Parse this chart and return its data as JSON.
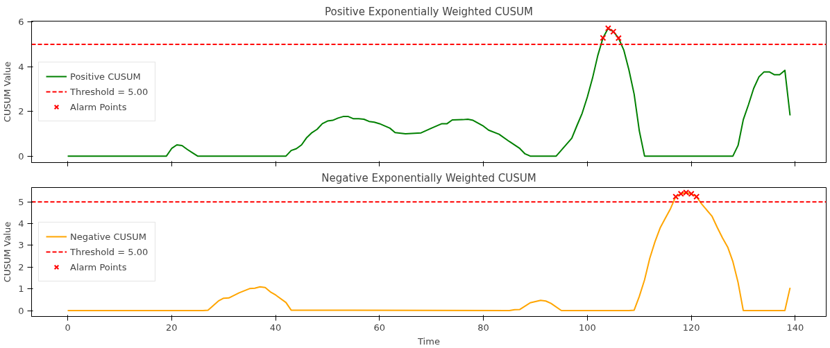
{
  "chart_data": [
    {
      "type": "line",
      "title": "Positive Exponentially Weighted CUSUM",
      "ylabel": "CUSUM Value",
      "xlim": [
        -6.95,
        145.95
      ],
      "ylim": [
        -0.29,
        6.04
      ],
      "xticks": [
        0,
        20,
        40,
        60,
        80,
        100,
        120,
        140
      ],
      "yticks": [
        0,
        2,
        4,
        6
      ],
      "tick_labels": "y",
      "grid": false,
      "legend": "left",
      "series": [
        {
          "name": "Positive CUSUM",
          "color": "#008000",
          "line_style": "solid",
          "marker": "none",
          "x": [
            0,
            19,
            20,
            21,
            22,
            23,
            24,
            25,
            42,
            43,
            44,
            45,
            46,
            47,
            48,
            49,
            50,
            51,
            52,
            53,
            54,
            55,
            56,
            57,
            58,
            59,
            60,
            62,
            63,
            65,
            68,
            70,
            72,
            73,
            74,
            76,
            77,
            78,
            80,
            81,
            83,
            85,
            87,
            88,
            89,
            94,
            97,
            98,
            99,
            100,
            101,
            102,
            103,
            104,
            105,
            106,
            107,
            108,
            109,
            110,
            111,
            128,
            129,
            130,
            131,
            132,
            133,
            134,
            135,
            136,
            137,
            138,
            139
          ],
          "values": [
            0,
            0,
            0.34,
            0.5,
            0.47,
            0.3,
            0.15,
            0,
            0,
            0.25,
            0.33,
            0.5,
            0.83,
            1.05,
            1.2,
            1.45,
            1.57,
            1.6,
            1.7,
            1.77,
            1.77,
            1.67,
            1.67,
            1.65,
            1.55,
            1.52,
            1.45,
            1.25,
            1.05,
            1.0,
            1.04,
            1.25,
            1.45,
            1.45,
            1.62,
            1.63,
            1.65,
            1.6,
            1.34,
            1.16,
            0.98,
            0.65,
            0.34,
            0.1,
            0,
            0,
            0.8,
            1.37,
            1.92,
            2.65,
            3.5,
            4.5,
            5.29,
            5.72,
            5.57,
            5.28,
            4.75,
            3.85,
            2.77,
            1.12,
            0,
            0,
            0.48,
            1.63,
            2.3,
            3.03,
            3.54,
            3.77,
            3.77,
            3.64,
            3.64,
            3.84,
            1.82
          ]
        },
        {
          "name": "Alarm Points",
          "type": "scatter",
          "color": "#ff0000",
          "marker": "cross",
          "x": [
            103,
            104,
            105,
            106
          ],
          "values": [
            5.29,
            5.72,
            5.57,
            5.28
          ]
        }
      ],
      "ref_lines": [
        {
          "axis": "y",
          "value": 5.0,
          "label": "Threshold = 5.00",
          "color": "#ff0000",
          "line_style": "dashed"
        }
      ]
    },
    {
      "type": "line",
      "title": "Negative Exponentially Weighted CUSUM",
      "xlabel": "Time",
      "ylabel": "CUSUM Value",
      "xlim": [
        -6.95,
        145.95
      ],
      "ylim": [
        -0.27,
        5.66
      ],
      "xticks": [
        0,
        20,
        40,
        60,
        80,
        100,
        120,
        140
      ],
      "yticks": [
        0,
        1,
        2,
        3,
        4,
        5
      ],
      "grid": false,
      "legend": "left",
      "series": [
        {
          "name": "Negative CUSUM",
          "color": "#ffa500",
          "line_style": "solid",
          "marker": "none",
          "x": [
            0,
            26,
            27,
            29,
            30,
            31,
            33,
            35,
            36,
            37,
            38,
            39,
            40,
            42,
            43,
            85,
            86,
            87,
            89,
            91,
            92,
            93,
            95,
            108,
            109,
            110,
            111,
            112,
            113,
            114,
            115,
            116,
            117,
            118,
            119,
            120,
            121,
            122,
            124,
            125,
            126,
            127,
            128,
            129,
            130,
            138,
            139
          ],
          "values": [
            0,
            0,
            0.02,
            0.44,
            0.57,
            0.58,
            0.82,
            1.01,
            1.03,
            1.09,
            1.06,
            0.86,
            0.72,
            0.37,
            0.02,
            0,
            0.04,
            0.05,
            0.36,
            0.47,
            0.44,
            0.33,
            0,
            0,
            0.02,
            0.66,
            1.41,
            2.4,
            3.16,
            3.8,
            4.25,
            4.69,
            5.24,
            5.37,
            5.43,
            5.37,
            5.24,
            4.9,
            4.33,
            3.82,
            3.34,
            2.92,
            2.25,
            1.29,
            0,
            0,
            1.05
          ]
        },
        {
          "name": "Alarm Points",
          "type": "scatter",
          "color": "#ff0000",
          "marker": "cross",
          "x": [
            117,
            118,
            119,
            120,
            121
          ],
          "values": [
            5.24,
            5.37,
            5.43,
            5.37,
            5.24
          ]
        }
      ],
      "ref_lines": [
        {
          "axis": "y",
          "value": 5.0,
          "label": "Threshold = 5.00",
          "color": "#ff0000",
          "line_style": "dashed"
        }
      ]
    }
  ]
}
